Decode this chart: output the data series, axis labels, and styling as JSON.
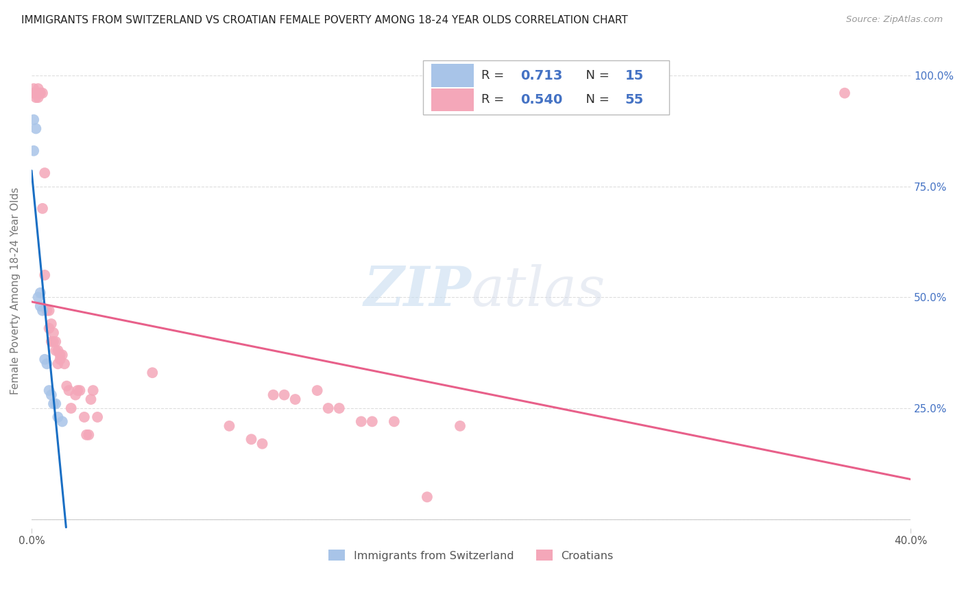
{
  "title": "IMMIGRANTS FROM SWITZERLAND VS CROATIAN FEMALE POVERTY AMONG 18-24 YEAR OLDS CORRELATION CHART",
  "source": "Source: ZipAtlas.com",
  "ylabel": "Female Poverty Among 18-24 Year Olds",
  "xlim": [
    0.0,
    0.4
  ],
  "ylim": [
    -0.02,
    1.05
  ],
  "yticks": [
    0.0,
    0.25,
    0.5,
    0.75,
    1.0
  ],
  "yticklabels_right": [
    "",
    "25.0%",
    "50.0%",
    "75.0%",
    "100.0%"
  ],
  "swiss_R": 0.713,
  "swiss_N": 15,
  "croatian_R": 0.54,
  "croatian_N": 55,
  "swiss_color": "#a8c4e8",
  "croatian_color": "#f4a7b9",
  "swiss_line_color": "#1a6fc4",
  "croatian_line_color": "#e8608a",
  "watermark_zip": "ZIP",
  "watermark_atlas": "atlas",
  "swiss_x": [
    0.001,
    0.001,
    0.002,
    0.003,
    0.004,
    0.004,
    0.005,
    0.006,
    0.007,
    0.008,
    0.009,
    0.01,
    0.011,
    0.012,
    0.014
  ],
  "swiss_y": [
    0.83,
    0.9,
    0.88,
    0.5,
    0.48,
    0.51,
    0.47,
    0.36,
    0.35,
    0.29,
    0.28,
    0.26,
    0.26,
    0.23,
    0.22
  ],
  "croatian_x": [
    0.001,
    0.001,
    0.002,
    0.002,
    0.003,
    0.003,
    0.004,
    0.004,
    0.005,
    0.005,
    0.006,
    0.006,
    0.007,
    0.008,
    0.008,
    0.009,
    0.009,
    0.01,
    0.01,
    0.011,
    0.011,
    0.012,
    0.012,
    0.013,
    0.013,
    0.014,
    0.015,
    0.016,
    0.017,
    0.018,
    0.02,
    0.021,
    0.022,
    0.024,
    0.025,
    0.026,
    0.027,
    0.028,
    0.03,
    0.055,
    0.09,
    0.1,
    0.105,
    0.11,
    0.115,
    0.12,
    0.13,
    0.135,
    0.14,
    0.15,
    0.155,
    0.165,
    0.18,
    0.195,
    0.37
  ],
  "croatian_y": [
    0.96,
    0.97,
    0.96,
    0.95,
    0.97,
    0.95,
    0.96,
    0.96,
    0.7,
    0.96,
    0.78,
    0.55,
    0.47,
    0.47,
    0.43,
    0.44,
    0.4,
    0.42,
    0.4,
    0.4,
    0.38,
    0.38,
    0.35,
    0.37,
    0.36,
    0.37,
    0.35,
    0.3,
    0.29,
    0.25,
    0.28,
    0.29,
    0.29,
    0.23,
    0.19,
    0.19,
    0.27,
    0.29,
    0.23,
    0.33,
    0.21,
    0.18,
    0.17,
    0.28,
    0.28,
    0.27,
    0.29,
    0.25,
    0.25,
    0.22,
    0.22,
    0.22,
    0.05,
    0.21,
    0.96
  ],
  "background_color": "#ffffff",
  "grid_color": "#dddddd",
  "title_color": "#222222",
  "axis_label_color": "#777777",
  "right_tick_color": "#4472c4"
}
